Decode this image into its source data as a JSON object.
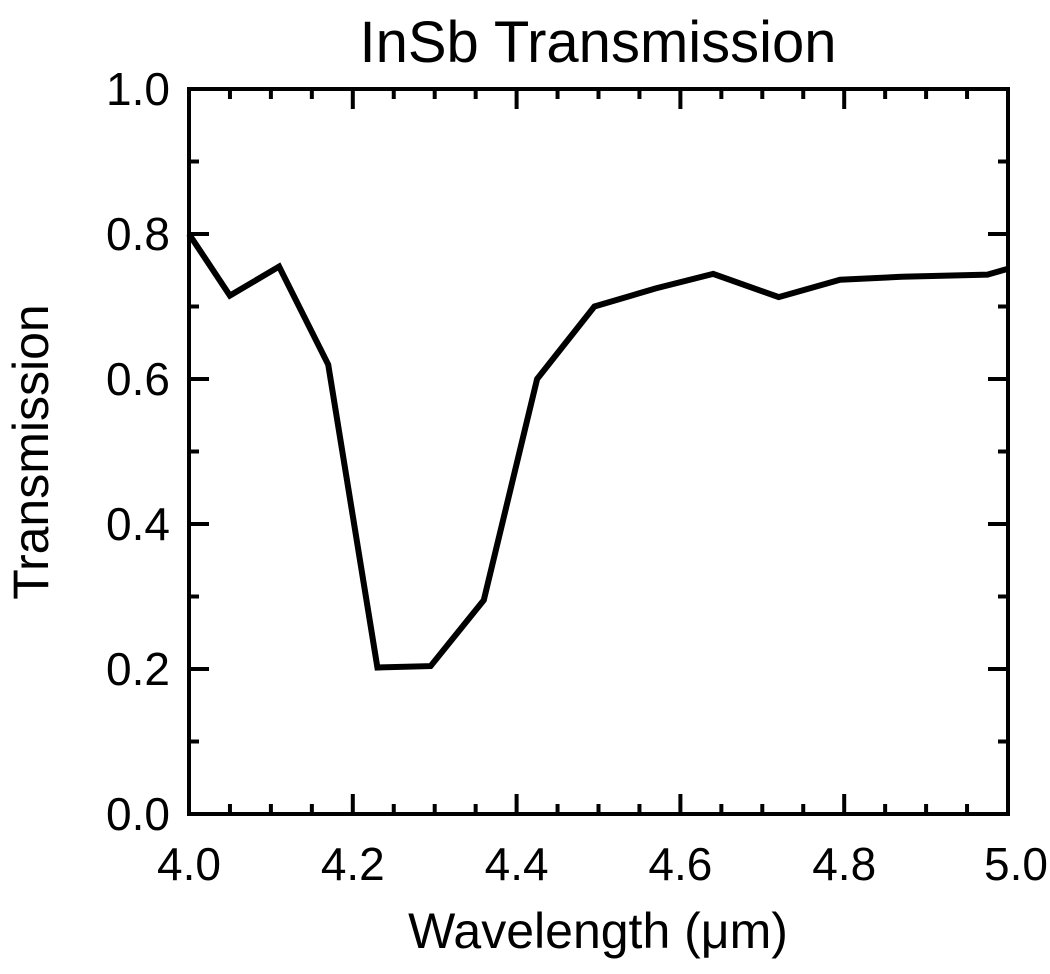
{
  "chart_data": {
    "type": "line",
    "title": "InSb Transmission",
    "xlabel": "Wavelength (μm)",
    "ylabel": "Transmission",
    "xlim": [
      4.0,
      5.0
    ],
    "ylim": [
      0.0,
      1.0
    ],
    "x_ticks": [
      "4.0",
      "4.2",
      "4.4",
      "4.6",
      "4.8",
      "5.0"
    ],
    "y_ticks": [
      "0.0",
      "0.2",
      "0.4",
      "0.6",
      "0.8",
      "1.0"
    ],
    "grid": false,
    "legend": "none",
    "line_color": "#000000",
    "series": [
      {
        "x": [
          4.0,
          4.05,
          4.11,
          4.17,
          4.23,
          4.295,
          4.36,
          4.425,
          4.495,
          4.57,
          4.64,
          4.72,
          4.795,
          4.87,
          4.975,
          5.0
        ],
        "y": [
          0.8,
          0.715,
          0.755,
          0.62,
          0.202,
          0.204,
          0.295,
          0.6,
          0.7,
          0.725,
          0.745,
          0.713,
          0.737,
          0.741,
          0.744,
          0.752
        ]
      }
    ]
  }
}
